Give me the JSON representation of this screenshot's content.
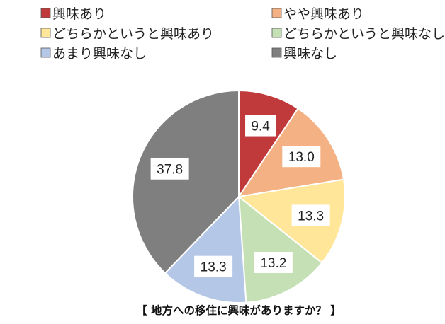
{
  "chart_data": {
    "type": "pie",
    "title": "【 地方への移住に興味がありますか？ 】",
    "start": "top-clockwise",
    "legend_position": "top",
    "categories": [
      "興味あり",
      "やや興味あり",
      "どちらかというと興味あり",
      "どちらかというと興味なし",
      "あまり興味なし",
      "興味なし"
    ],
    "values": [
      9.4,
      13.0,
      13.3,
      13.2,
      13.3,
      37.8
    ],
    "labels": [
      "9.4",
      "13.0",
      "13.3",
      "13.2",
      "13.3",
      "37.8"
    ],
    "colors": [
      "#c0393b",
      "#f4b183",
      "#ffe699",
      "#c5e0b4",
      "#b4c7e7",
      "#7f7f7f"
    ]
  }
}
